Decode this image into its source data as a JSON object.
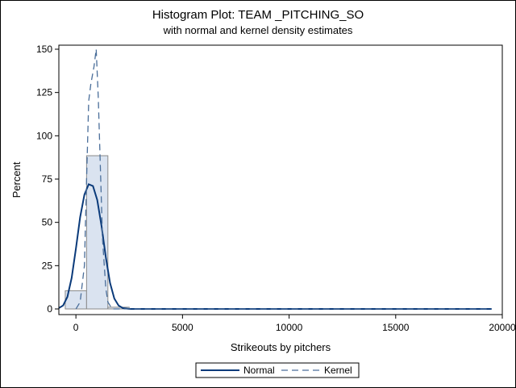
{
  "chart_data": {
    "type": "bar",
    "title": "Histogram Plot: TEAM _PITCHING_SO",
    "subtitle": "with normal and kernel density estimates",
    "xlabel": "Strikeouts by pitchers",
    "ylabel": "Percent",
    "xlim": [
      -800,
      20000
    ],
    "ylim": [
      0,
      150
    ],
    "xticks": [
      0,
      5000,
      10000,
      15000,
      20000
    ],
    "yticks": [
      0,
      25,
      50,
      75,
      100,
      125,
      150
    ],
    "bins": [
      {
        "x0": -500,
        "x1": 500,
        "value": 10.5
      },
      {
        "x0": 500,
        "x1": 1500,
        "value": 88.5
      },
      {
        "x0": 1500,
        "x1": 2500,
        "value": 1.0
      }
    ],
    "series": [
      {
        "name": "Normal",
        "style": "solid",
        "color": "#0a3a7a",
        "x": [
          -800,
          -600,
          -400,
          -200,
          0,
          200,
          400,
          600,
          800,
          1000,
          1200,
          1400,
          1600,
          1800,
          2000,
          2200,
          2500,
          3000,
          19500
        ],
        "y": [
          0.5,
          2,
          7,
          18,
          35,
          53,
          66,
          72,
          71,
          63,
          48,
          30,
          15,
          6,
          2,
          0.5,
          0,
          0,
          0
        ]
      },
      {
        "name": "Kernel",
        "style": "dashed",
        "color": "#4a6e9a",
        "x": [
          0,
          200,
          400,
          500,
          600,
          700,
          850,
          950,
          1050,
          1150,
          1250,
          1400,
          1500,
          1700,
          19500
        ],
        "y": [
          0,
          4,
          25,
          75,
          120,
          130,
          140,
          150,
          122,
          80,
          40,
          12,
          4,
          0,
          0
        ]
      }
    ],
    "legend": {
      "position": "bottom",
      "entries": [
        "Normal",
        "Kernel"
      ]
    },
    "grid": false,
    "colors": {
      "bar_fill": "#dae3f0",
      "bar_stroke": "#8a8a8a",
      "axis": "#000000"
    }
  }
}
